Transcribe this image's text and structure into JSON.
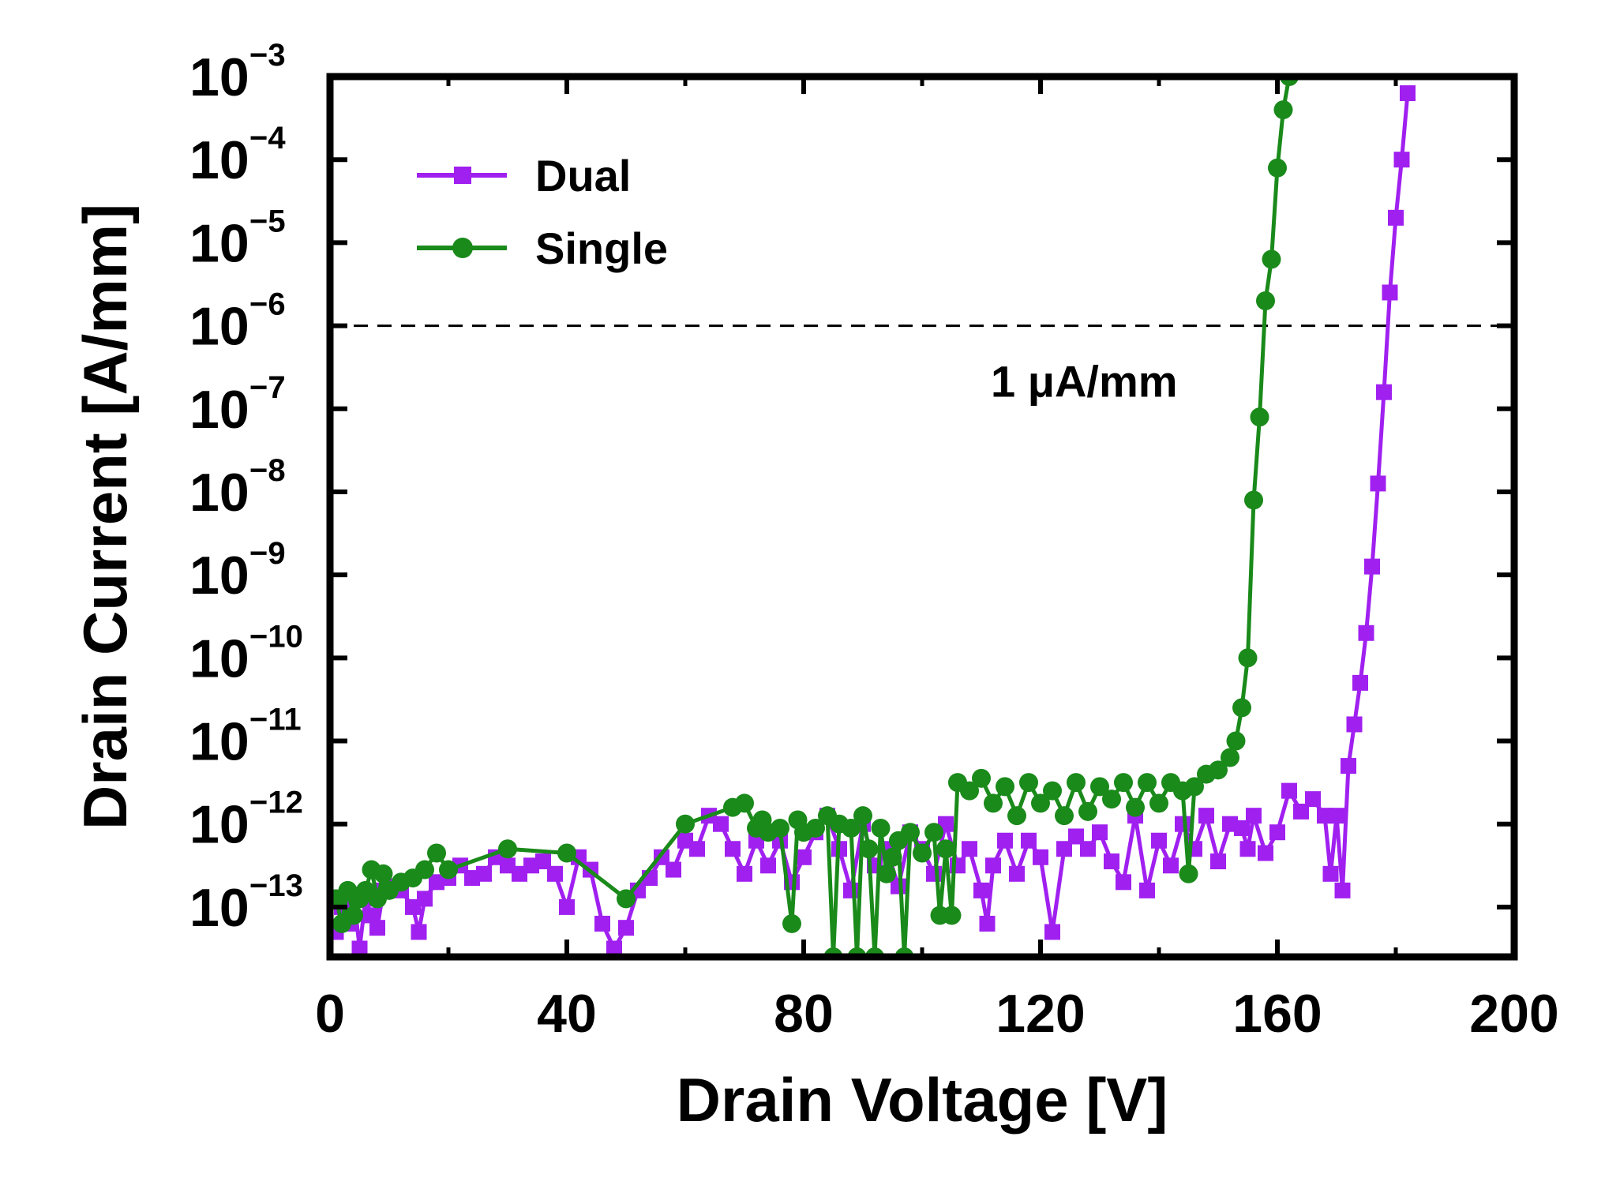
{
  "chart_data": {
    "type": "line",
    "xlabel": "Drain Voltage [V]",
    "ylabel": "Drain Current [A/mm]",
    "xlim": [
      0,
      200
    ],
    "ylim_log10": [
      -13.6,
      -3
    ],
    "y_scale": "log",
    "x_ticks": [
      0,
      40,
      80,
      120,
      160,
      200
    ],
    "x_tick_labels": [
      "0",
      "40",
      "80",
      "120",
      "160",
      "200"
    ],
    "y_tick_exponents": [
      -3,
      -4,
      -5,
      -6,
      -7,
      -8,
      -9,
      -10,
      -11,
      -12,
      -13
    ],
    "y_tick_base": "10",
    "y_tick_exponent_labels": [
      "−3",
      "−4",
      "−5",
      "−6",
      "−7",
      "−8",
      "−9",
      "−10",
      "−11",
      "−12",
      "−13"
    ],
    "grid": false,
    "legend_position": "top-left",
    "reference_line": {
      "y": 1e-06,
      "style": "dashed",
      "label": "1 μA/mm"
    },
    "series": [
      {
        "name": "Dual",
        "color": "#a020f0",
        "marker": "square",
        "points": [
          [
            1,
            -13.3
          ],
          [
            2,
            -13.0
          ],
          [
            3,
            -13.2
          ],
          [
            4,
            -12.85
          ],
          [
            5,
            -13.5
          ],
          [
            6,
            -12.9
          ],
          [
            7,
            -13.1
          ],
          [
            8,
            -13.25
          ],
          [
            9,
            -12.8
          ],
          [
            10,
            -12.75
          ],
          [
            12,
            -12.8
          ],
          [
            14,
            -13.0
          ],
          [
            15,
            -13.3
          ],
          [
            16,
            -12.9
          ],
          [
            18,
            -12.7
          ],
          [
            20,
            -12.65
          ],
          [
            22,
            -12.5
          ],
          [
            24,
            -12.65
          ],
          [
            26,
            -12.6
          ],
          [
            28,
            -12.4
          ],
          [
            30,
            -12.5
          ],
          [
            32,
            -12.6
          ],
          [
            34,
            -12.5
          ],
          [
            36,
            -12.45
          ],
          [
            38,
            -12.6
          ],
          [
            40,
            -13.0
          ],
          [
            42,
            -12.4
          ],
          [
            44,
            -12.55
          ],
          [
            46,
            -13.2
          ],
          [
            48,
            -13.5
          ],
          [
            50,
            -13.25
          ],
          [
            52,
            -12.8
          ],
          [
            54,
            -12.65
          ],
          [
            56,
            -12.4
          ],
          [
            58,
            -12.55
          ],
          [
            60,
            -12.2
          ],
          [
            62,
            -12.3
          ],
          [
            64,
            -11.9
          ],
          [
            66,
            -12.0
          ],
          [
            68,
            -12.3
          ],
          [
            70,
            -12.6
          ],
          [
            72,
            -12.2
          ],
          [
            74,
            -12.5
          ],
          [
            76,
            -12.2
          ],
          [
            78,
            -12.7
          ],
          [
            80,
            -12.4
          ],
          [
            82,
            -12.1
          ],
          [
            84,
            -11.9
          ],
          [
            86,
            -12.3
          ],
          [
            88,
            -12.8
          ],
          [
            90,
            -12.0
          ],
          [
            92,
            -12.5
          ],
          [
            94,
            -12.3
          ],
          [
            96,
            -12.75
          ],
          [
            98,
            -12.1
          ],
          [
            100,
            -12.3
          ],
          [
            102,
            -12.6
          ],
          [
            104,
            -12.0
          ],
          [
            106,
            -12.5
          ],
          [
            108,
            -12.3
          ],
          [
            110,
            -12.8
          ],
          [
            111,
            -13.2
          ],
          [
            112,
            -12.5
          ],
          [
            114,
            -12.2
          ],
          [
            116,
            -12.6
          ],
          [
            118,
            -12.2
          ],
          [
            120,
            -12.4
          ],
          [
            122,
            -13.3
          ],
          [
            124,
            -12.3
          ],
          [
            126,
            -12.15
          ],
          [
            128,
            -12.3
          ],
          [
            130,
            -12.1
          ],
          [
            132,
            -12.45
          ],
          [
            134,
            -12.7
          ],
          [
            136,
            -11.9
          ],
          [
            138,
            -12.8
          ],
          [
            140,
            -12.2
          ],
          [
            142,
            -12.5
          ],
          [
            144,
            -12.0
          ],
          [
            146,
            -12.3
          ],
          [
            148,
            -11.9
          ],
          [
            150,
            -12.45
          ],
          [
            152,
            -12.0
          ],
          [
            154,
            -12.05
          ],
          [
            155,
            -12.3
          ],
          [
            156,
            -11.9
          ],
          [
            158,
            -12.35
          ],
          [
            160,
            -12.1
          ],
          [
            162,
            -11.6
          ],
          [
            164,
            -11.85
          ],
          [
            166,
            -11.7
          ],
          [
            168,
            -11.9
          ],
          [
            169,
            -12.6
          ],
          [
            170,
            -11.9
          ],
          [
            171,
            -12.8
          ],
          [
            172,
            -11.3
          ],
          [
            173,
            -10.8
          ],
          [
            174,
            -10.3
          ],
          [
            175,
            -9.7
          ],
          [
            176,
            -8.9
          ],
          [
            177,
            -7.9
          ],
          [
            178,
            -6.8
          ],
          [
            179,
            -5.6
          ],
          [
            180,
            -4.7
          ],
          [
            181,
            -4.0
          ],
          [
            182,
            -3.2
          ]
        ]
      },
      {
        "name": "Single",
        "color": "#1a8a1a",
        "marker": "circle",
        "points": [
          [
            1,
            -12.9
          ],
          [
            2,
            -13.2
          ],
          [
            3,
            -12.8
          ],
          [
            4,
            -13.1
          ],
          [
            5,
            -12.9
          ],
          [
            6,
            -12.8
          ],
          [
            7,
            -12.55
          ],
          [
            8,
            -12.9
          ],
          [
            9,
            -12.6
          ],
          [
            10,
            -12.8
          ],
          [
            12,
            -12.7
          ],
          [
            14,
            -12.65
          ],
          [
            16,
            -12.55
          ],
          [
            18,
            -12.35
          ],
          [
            20,
            -12.55
          ],
          [
            30,
            -12.3
          ],
          [
            40,
            -12.35
          ],
          [
            50,
            -12.9
          ],
          [
            60,
            -12.0
          ],
          [
            68,
            -11.8
          ],
          [
            70,
            -11.75
          ],
          [
            72,
            -12.05
          ],
          [
            73,
            -11.95
          ],
          [
            74,
            -12.1
          ],
          [
            76,
            -12.05
          ],
          [
            78,
            -13.2
          ],
          [
            79,
            -11.95
          ],
          [
            80,
            -12.1
          ],
          [
            82,
            -12.05
          ],
          [
            84,
            -11.9
          ],
          [
            85,
            -13.6
          ],
          [
            86,
            -12.0
          ],
          [
            88,
            -12.05
          ],
          [
            89,
            -13.6
          ],
          [
            90,
            -11.9
          ],
          [
            91,
            -12.3
          ],
          [
            92,
            -13.6
          ],
          [
            93,
            -12.05
          ],
          [
            94,
            -12.6
          ],
          [
            95,
            -12.4
          ],
          [
            96,
            -12.2
          ],
          [
            97,
            -13.6
          ],
          [
            98,
            -12.1
          ],
          [
            100,
            -12.35
          ],
          [
            102,
            -12.1
          ],
          [
            103,
            -13.1
          ],
          [
            104,
            -12.3
          ],
          [
            105,
            -13.1
          ],
          [
            106,
            -11.5
          ],
          [
            108,
            -11.6
          ],
          [
            110,
            -11.45
          ],
          [
            112,
            -11.75
          ],
          [
            114,
            -11.55
          ],
          [
            116,
            -11.9
          ],
          [
            118,
            -11.5
          ],
          [
            120,
            -11.75
          ],
          [
            122,
            -11.6
          ],
          [
            124,
            -11.9
          ],
          [
            126,
            -11.5
          ],
          [
            128,
            -11.85
          ],
          [
            130,
            -11.55
          ],
          [
            132,
            -11.7
          ],
          [
            134,
            -11.5
          ],
          [
            136,
            -11.8
          ],
          [
            138,
            -11.5
          ],
          [
            140,
            -11.75
          ],
          [
            142,
            -11.5
          ],
          [
            144,
            -11.6
          ],
          [
            145,
            -12.6
          ],
          [
            146,
            -11.55
          ],
          [
            148,
            -11.4
          ],
          [
            150,
            -11.35
          ],
          [
            152,
            -11.2
          ],
          [
            153,
            -11.0
          ],
          [
            154,
            -10.6
          ],
          [
            155,
            -10.0
          ],
          [
            156,
            -8.1
          ],
          [
            157,
            -7.1
          ],
          [
            158,
            -5.7
          ],
          [
            159,
            -5.2
          ],
          [
            160,
            -4.1
          ],
          [
            161,
            -3.4
          ],
          [
            162,
            -3.0
          ]
        ]
      }
    ]
  }
}
